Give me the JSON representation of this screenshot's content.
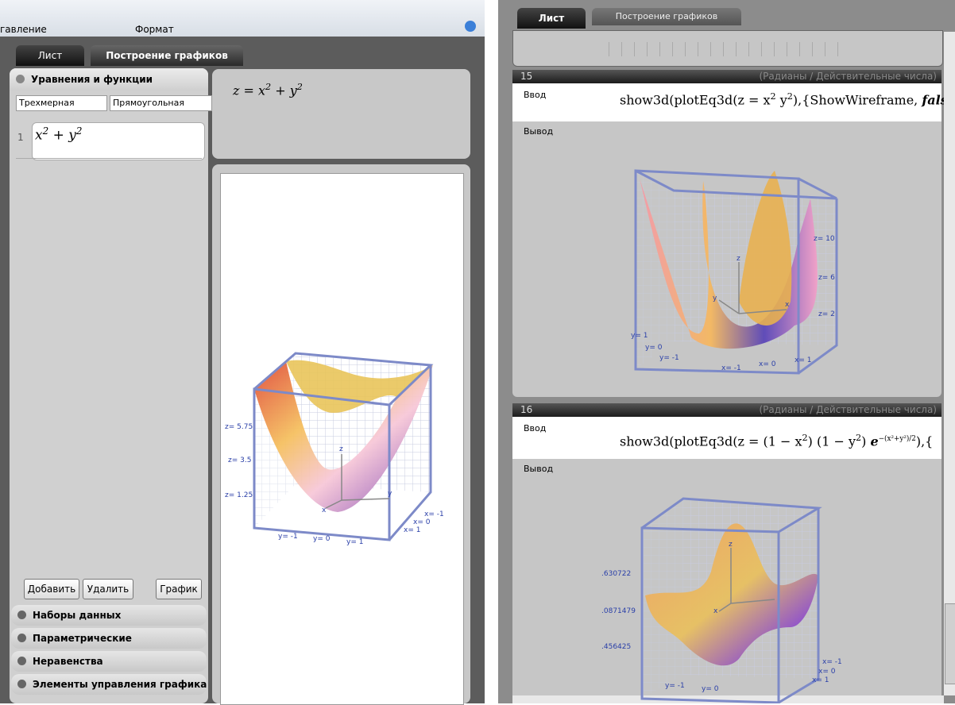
{
  "left": {
    "menu": [
      "гавление",
      "Формат"
    ],
    "tabs": [
      "Лист",
      "Построение графиков"
    ],
    "sidebar": {
      "section": "Уравнения и функции",
      "dimension": "Трехмерная",
      "coords": "Прямоугольная",
      "entry": {
        "index": "1",
        "a": "x",
        "a_sup": "2",
        "b": " + y",
        "b_sup": "2"
      },
      "buttons": [
        "Добавить",
        "Удалить",
        "График"
      ],
      "sections": [
        "Наборы данных",
        "Параметрические",
        "Неравенства",
        "Элементы управления графиками"
      ]
    },
    "formula": {
      "a": "z = x",
      "a_sup": "2",
      "b": " + y",
      "b_sup": "2"
    },
    "plot": {
      "z_labels": [
        "z= 5.75",
        "z= 3.5",
        "z= 1.25"
      ],
      "y_labels": [
        "y= -1",
        "y= 0",
        "y= 1"
      ],
      "x_labels": [
        "x= -1",
        "x= 0",
        "x= 1"
      ],
      "axes": [
        "z",
        "y",
        "x"
      ]
    }
  },
  "right": {
    "tabs": [
      "Лист",
      "Построение графиков"
    ],
    "cells": [
      {
        "number": "15",
        "mode": "(Радианы / Действительные числа)",
        "input_label": "Ввод",
        "output_label": "Вывод",
        "input": {
          "a": "show3d(plotEq3d(z = x",
          "a_sup": "2",
          "b": " y",
          "b_sup": "2",
          "c": "),{ShowWireframe, ",
          "d": "fals"
        },
        "plot": {
          "z_labels": [
            "z= 10",
            "z= 6",
            "z= 2"
          ],
          "y_labels": [
            "y= 1",
            "y= 0",
            "y= -1"
          ],
          "x_labels": [
            "x= -1",
            "x= 0",
            "x= 1"
          ],
          "axes": [
            "z",
            "y",
            "x"
          ]
        }
      },
      {
        "number": "16",
        "mode": "(Радианы / Действительные числа)",
        "input_label": "Ввод",
        "output_label": "Вывод",
        "input": {
          "a": "show3d(plotEq3d(z = (1 − x",
          "a_sup": "2",
          "b": ") (1 − y",
          "b_sup": "2",
          "c": ") ",
          "d": "e",
          "d_sup": "−(x²+y²)/2",
          "e": "),{"
        },
        "plot": {
          "z_labels": [
            ".630722",
            ".0871479",
            ".456425"
          ],
          "y_labels": [
            "y= -1",
            "y= 0"
          ],
          "x_labels": [
            "x= -1",
            "x= 0",
            "x= 1"
          ],
          "axes": [
            "z",
            "x"
          ]
        }
      }
    ]
  }
}
